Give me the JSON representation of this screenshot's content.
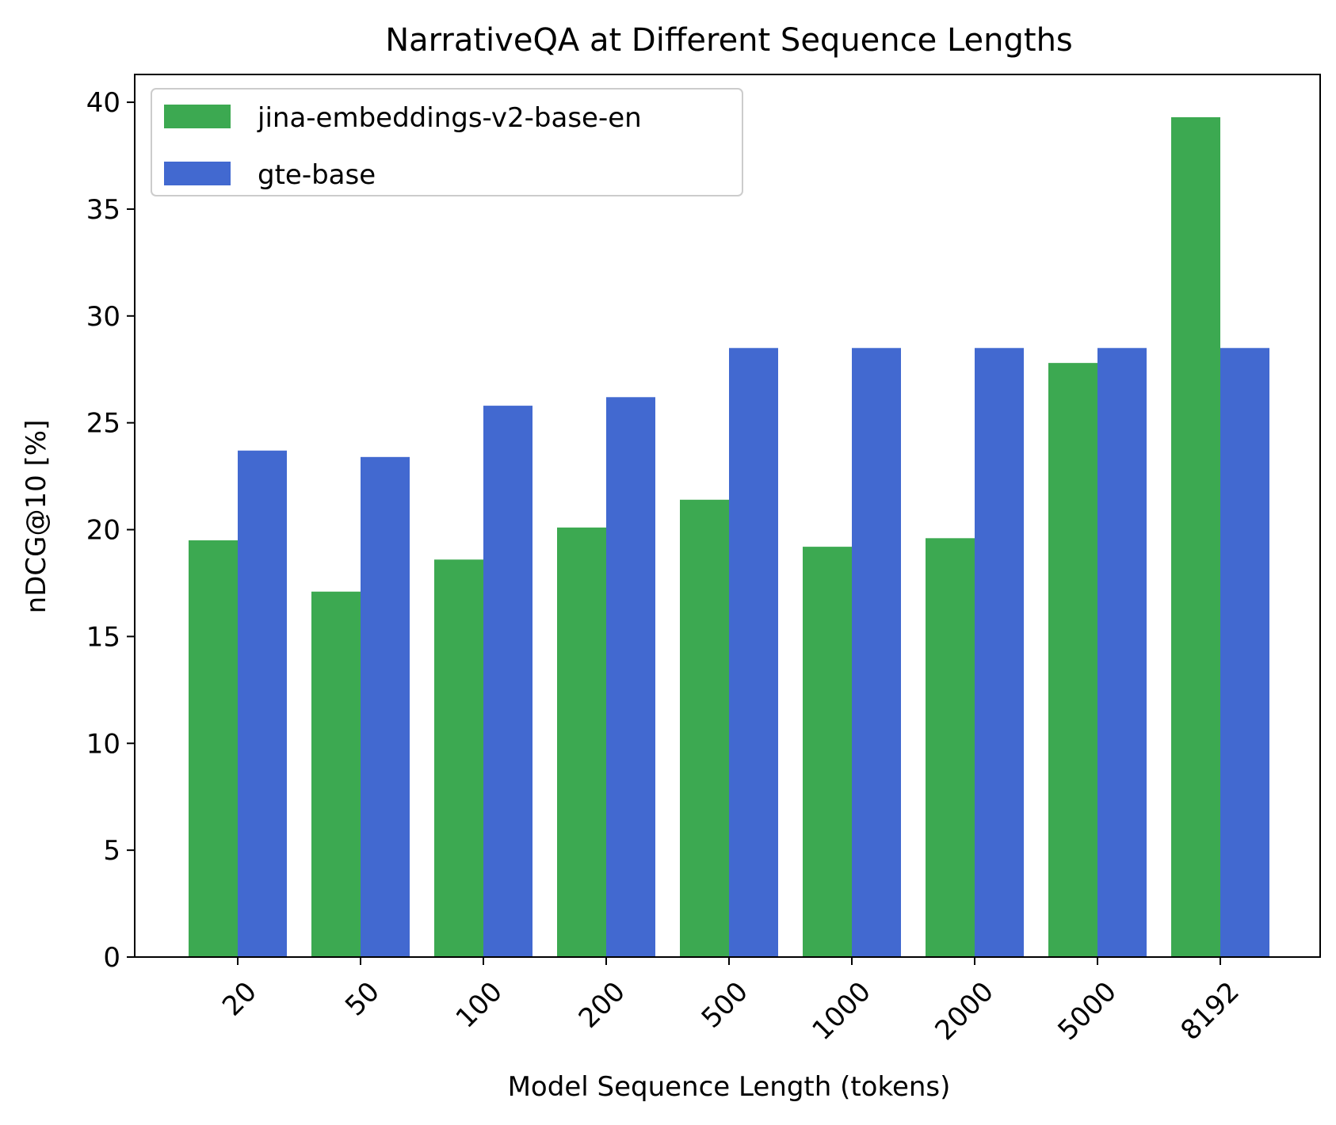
{
  "chart_data": {
    "type": "bar",
    "title": "NarrativeQA at Different Sequence Lengths",
    "xlabel": "Model Sequence Length (tokens)",
    "ylabel": "nDCG@10 [%]",
    "categories": [
      "20",
      "50",
      "100",
      "200",
      "500",
      "1000",
      "2000",
      "5000",
      "8192"
    ],
    "series": [
      {
        "name": "jina-embeddings-v2-base-en",
        "color": "#3ca951",
        "values": [
          19.5,
          17.1,
          18.6,
          20.1,
          21.4,
          19.2,
          19.6,
          27.8,
          39.3
        ]
      },
      {
        "name": "gte-base",
        "color": "#4269d0",
        "values": [
          23.7,
          23.4,
          25.8,
          26.2,
          28.5,
          28.5,
          28.5,
          28.5,
          28.5
        ]
      }
    ],
    "ylim": [
      0,
      41.3
    ],
    "yticks": [
      0,
      5,
      10,
      15,
      20,
      25,
      30,
      35,
      40
    ],
    "grid": false,
    "legend_position": "top-left"
  }
}
